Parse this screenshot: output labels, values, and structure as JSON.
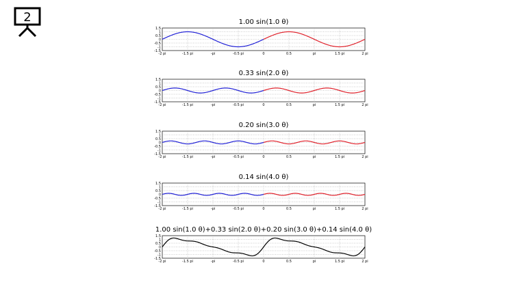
{
  "slide": {
    "number": "2"
  },
  "colors": {
    "negative_half": "#1f1fd6",
    "positive_half": "#e0202a",
    "sum": "#000000",
    "grid": "#9a9a9a"
  },
  "chart_data": [
    {
      "type": "line",
      "title": "1.00 sin(1.0 θ)",
      "amplitude": 1.0,
      "frequency": 1.0,
      "x_range_pi": [
        -2,
        2
      ],
      "ylim": [
        -1.5,
        1.5
      ],
      "x_ticks": [
        "-2 pi",
        "-1.5 pi",
        "-pi",
        "-0.5 pi",
        "0",
        "0.5",
        "pi",
        "1.5 pi",
        "2 pi"
      ],
      "y_ticks": [
        "1.5",
        "1",
        "0.5",
        "0",
        "-0.5",
        "-1",
        "-1.5"
      ],
      "grid": true,
      "split_color_at_zero": true
    },
    {
      "type": "line",
      "title": "0.33 sin(2.0 θ)",
      "amplitude": 0.33,
      "frequency": 2.0,
      "x_range_pi": [
        -2,
        2
      ],
      "ylim": [
        -1.5,
        1.5
      ],
      "x_ticks": [
        "-2 pi",
        "-1.5 pi",
        "-pi",
        "-0.5 pi",
        "0",
        "0.5",
        "pi",
        "1.5 pi",
        "2 pi"
      ],
      "y_ticks": [
        "1.5",
        "1",
        "0.5",
        "0",
        "-0.5",
        "-1",
        "-1.5"
      ],
      "grid": true,
      "split_color_at_zero": true
    },
    {
      "type": "line",
      "title": "0.20 sin(3.0 θ)",
      "amplitude": 0.2,
      "frequency": 3.0,
      "x_range_pi": [
        -2,
        2
      ],
      "ylim": [
        -1.5,
        1.5
      ],
      "x_ticks": [
        "-2 pi",
        "-1.5 pi",
        "-pi",
        "-0.5 pi",
        "0",
        "0.5",
        "pi",
        "1.5 pi",
        "2 pi"
      ],
      "y_ticks": [
        "1.5",
        "1",
        "0.5",
        "0",
        "-0.5",
        "-1",
        "-1.5"
      ],
      "grid": true,
      "split_color_at_zero": true
    },
    {
      "type": "line",
      "title": "0.14 sin(4.0 θ)",
      "amplitude": 0.14,
      "frequency": 4.0,
      "x_range_pi": [
        -2,
        2
      ],
      "ylim": [
        -1.5,
        1.5
      ],
      "x_ticks": [
        "-2 pi",
        "-1.5 pi",
        "-pi",
        "-0.5 pi",
        "0",
        "0.5",
        "pi",
        "1.5 pi",
        "2 pi"
      ],
      "y_ticks": [
        "1.5",
        "1",
        "0.5",
        "0",
        "-0.5",
        "-1",
        "-1.5"
      ],
      "grid": true,
      "split_color_at_zero": true
    },
    {
      "type": "line",
      "title": "1.00 sin(1.0 θ)+0.33 sin(2.0 θ)+0.20 sin(3.0 θ)+0.14 sin(4.0 θ)",
      "terms": [
        {
          "amplitude": 1.0,
          "frequency": 1.0
        },
        {
          "amplitude": 0.33,
          "frequency": 2.0
        },
        {
          "amplitude": 0.2,
          "frequency": 3.0
        },
        {
          "amplitude": 0.14,
          "frequency": 4.0
        }
      ],
      "x_range_pi": [
        -2,
        2
      ],
      "ylim": [
        -1.5,
        1.5
      ],
      "x_ticks": [
        "-2 pi",
        "-1.5 pi",
        "-pi",
        "-0.5 pi",
        "0",
        "0.5",
        "pi",
        "1.5 pi",
        "2 pi"
      ],
      "y_ticks": [
        "1.5",
        "1",
        "0.5",
        "0",
        "-0.5",
        "-1",
        "-1.5"
      ],
      "grid": true,
      "split_color_at_zero": false
    }
  ]
}
